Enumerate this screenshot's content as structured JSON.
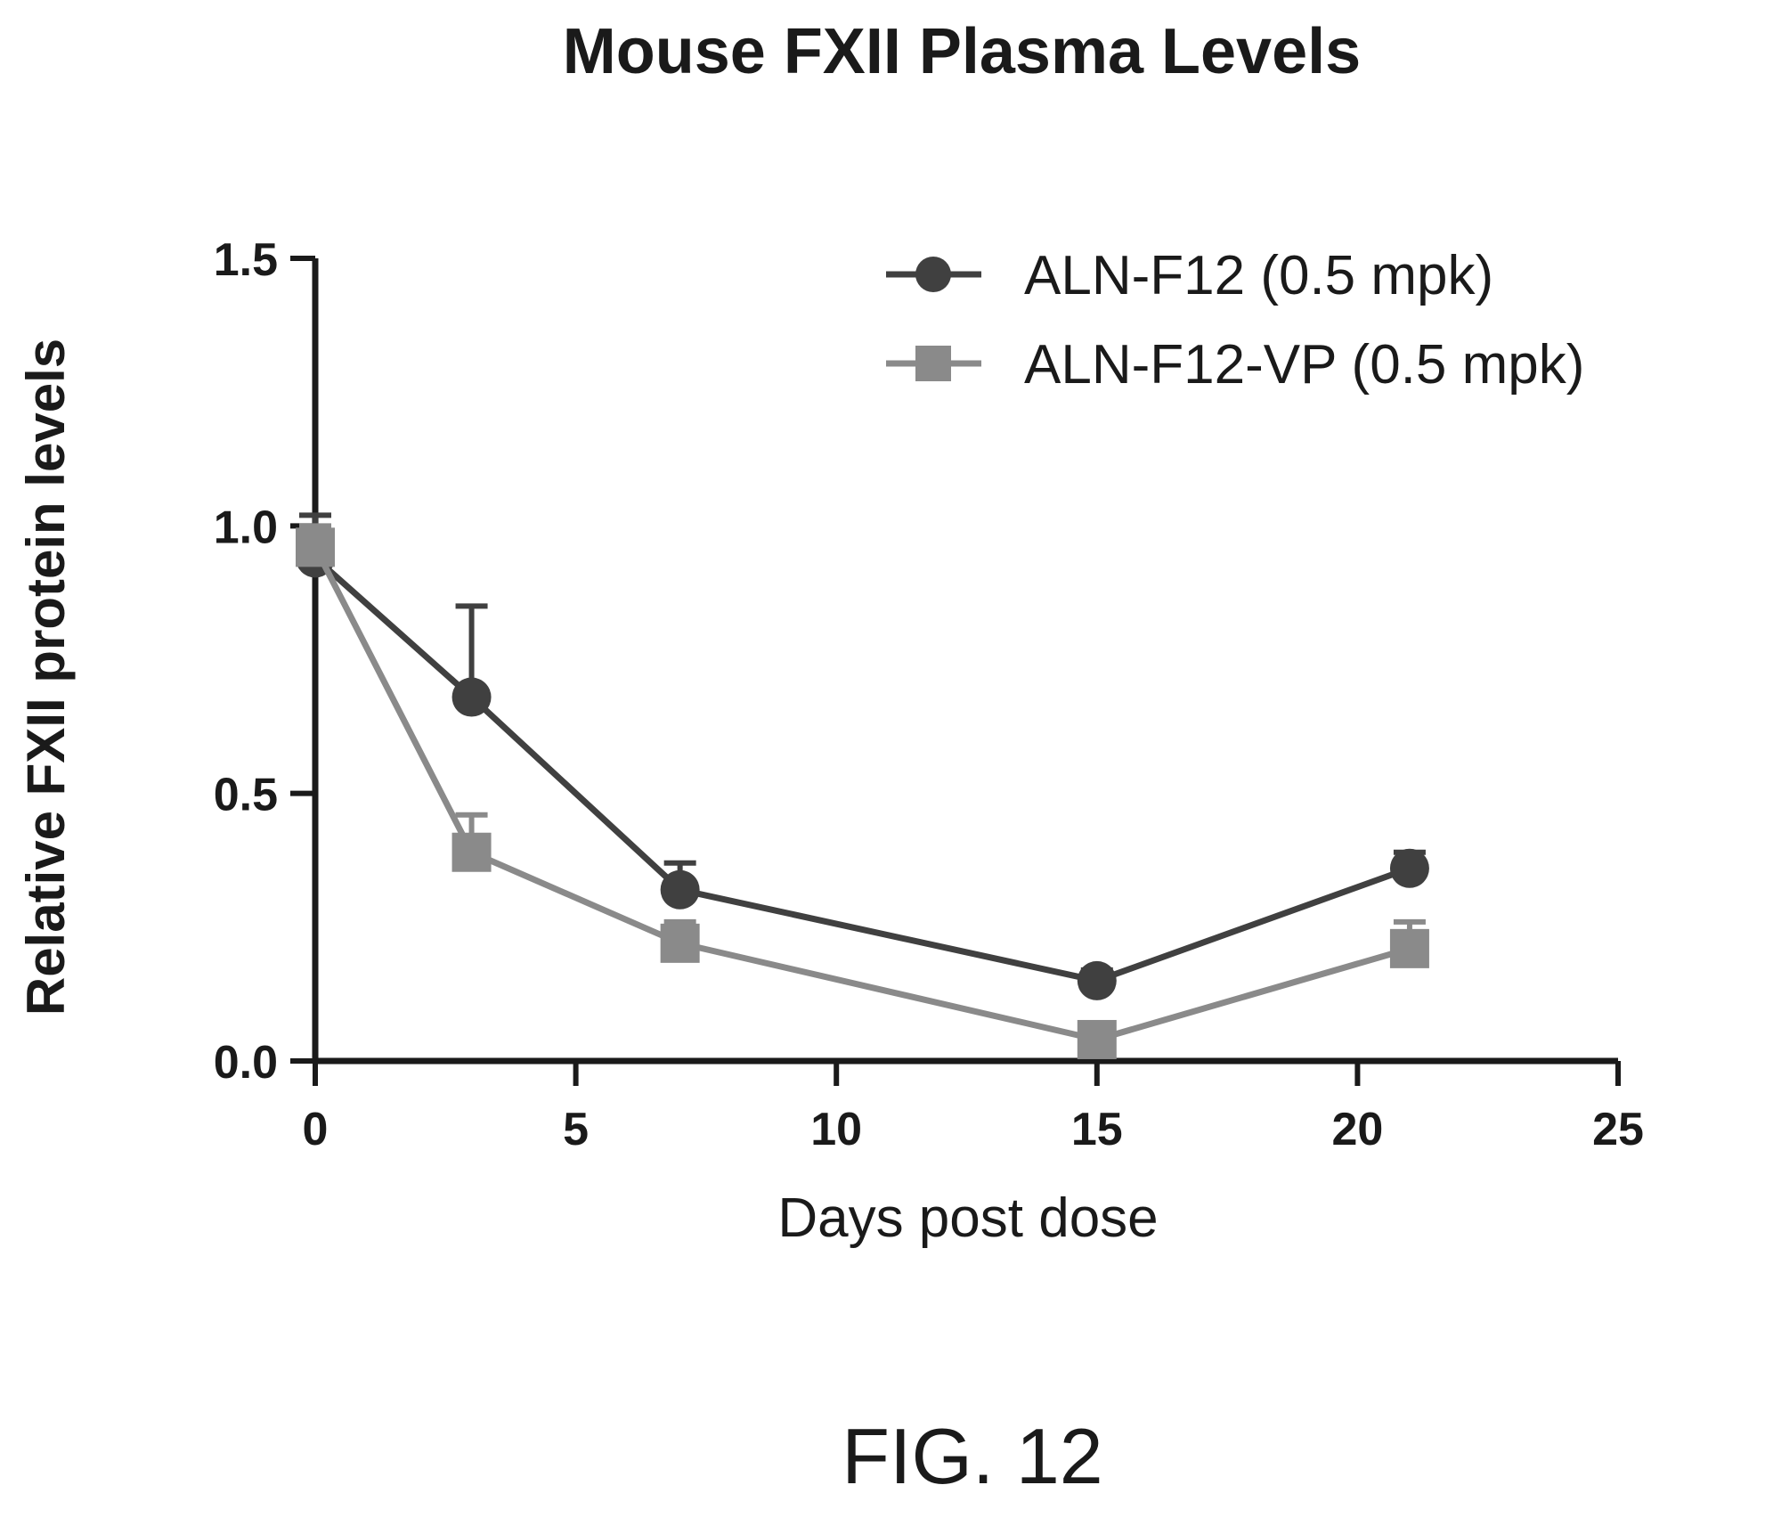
{
  "chart_data": {
    "type": "line",
    "title": "Mouse FXII Plasma Levels",
    "xlabel": "Days post dose",
    "ylabel": "Relative FXII protein levels",
    "xlim": [
      0,
      25
    ],
    "ylim": [
      0,
      1.5
    ],
    "x_ticks": [
      0,
      5,
      10,
      15,
      20,
      25
    ],
    "y_ticks": [
      0.0,
      0.5,
      1.0,
      1.5
    ],
    "x_tick_labels": [
      "0",
      "5",
      "10",
      "15",
      "20",
      "25"
    ],
    "y_tick_labels": [
      "0.0",
      "0.5",
      "1.0",
      "1.5"
    ],
    "grid": false,
    "legend_position": "top-right",
    "series": [
      {
        "name": "ALN-F12 (0.5 mpk)",
        "marker": "circle",
        "color": "#404040",
        "x": [
          0,
          3,
          7,
          15,
          21
        ],
        "y": [
          0.94,
          0.68,
          0.32,
          0.15,
          0.36
        ],
        "error_up": [
          0.08,
          0.17,
          0.05,
          0.02,
          0.03
        ]
      },
      {
        "name": "ALN-F12-VP (0.5 mpk)",
        "marker": "square",
        "color": "#8a8a8a",
        "x": [
          0,
          3,
          7,
          15,
          21
        ],
        "y": [
          0.96,
          0.39,
          0.22,
          0.04,
          0.21
        ],
        "error_up": [
          0.04,
          0.07,
          0.04,
          0.01,
          0.05
        ]
      }
    ]
  },
  "figure_label": "FIG. 12"
}
